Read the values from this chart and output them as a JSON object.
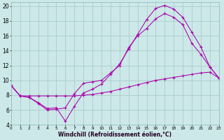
{
  "xlabel": "Windchill (Refroidissement éolien,°C)",
  "bg_color": "#cce8e8",
  "grid_color": "#aacccc",
  "line_color": "#aa00aa",
  "xlim": [
    0,
    23
  ],
  "ylim": [
    4,
    20.5
  ],
  "xtick_labels": [
    "0",
    "1",
    "2",
    "3",
    "4",
    "5",
    "6",
    "7",
    "8",
    "9",
    "10",
    "11",
    "12",
    "13",
    "14",
    "15",
    "16",
    "17",
    "18",
    "19",
    "20",
    "21",
    "22",
    "23"
  ],
  "yticks": [
    4,
    6,
    8,
    10,
    12,
    14,
    16,
    18,
    20
  ],
  "series1_x": [
    0,
    1,
    2,
    3,
    4,
    5,
    6,
    7,
    8,
    9,
    10,
    11,
    12,
    13,
    14,
    15,
    16,
    17,
    18,
    19,
    20,
    21,
    22,
    23
  ],
  "series1_y": [
    9.3,
    7.9,
    7.7,
    6.9,
    6.0,
    6.1,
    6.3,
    8.2,
    9.6,
    9.8,
    10.0,
    11.0,
    12.0,
    14.4,
    16.0,
    17.0,
    18.3,
    19.0,
    18.5,
    17.5,
    15.0,
    13.5,
    11.8,
    10.3
  ],
  "series2_x": [
    0,
    1,
    2,
    3,
    4,
    5,
    6,
    7,
    8,
    9,
    10,
    11,
    12,
    13,
    14,
    15,
    16,
    17,
    18,
    19,
    20,
    21,
    22,
    23
  ],
  "series2_y": [
    9.3,
    7.9,
    7.7,
    7.0,
    6.2,
    6.3,
    4.5,
    6.5,
    8.3,
    8.8,
    9.5,
    10.8,
    12.2,
    14.2,
    16.2,
    18.2,
    19.7,
    20.1,
    19.6,
    18.5,
    16.5,
    14.5,
    11.8,
    10.3
  ],
  "series3_x": [
    0,
    1,
    2,
    3,
    4,
    5,
    6,
    7,
    8,
    9,
    10,
    11,
    12,
    13,
    14,
    15,
    16,
    17,
    18,
    19,
    20,
    21,
    22,
    23
  ],
  "series3_y": [
    9.3,
    7.9,
    7.9,
    7.9,
    7.9,
    7.9,
    7.9,
    7.9,
    8.0,
    8.1,
    8.3,
    8.5,
    8.8,
    9.1,
    9.4,
    9.7,
    10.0,
    10.2,
    10.4,
    10.6,
    10.8,
    11.0,
    11.1,
    10.3
  ]
}
